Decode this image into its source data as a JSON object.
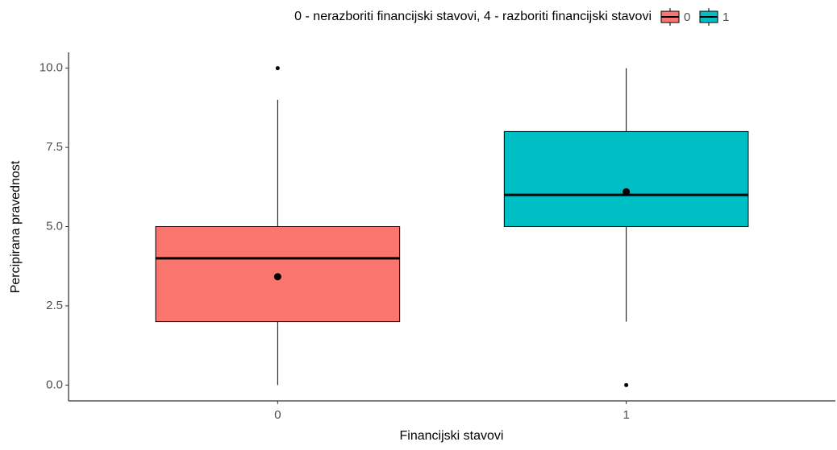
{
  "chart_data": {
    "type": "box",
    "legend_title": "0 - nerazboriti financijski stavovi, 4 - razboriti financijski stavovi",
    "legend_position": "top",
    "xlabel": "Financijski stavovi",
    "ylabel": "Percipirana pravednost",
    "categories": [
      "0",
      "1"
    ],
    "series": [
      {
        "name": "0",
        "color": "#F8766D",
        "min": 0,
        "q1": 2,
        "median": 4,
        "q3": 5,
        "max": 9,
        "mean": 3.42,
        "outliers": [
          10
        ]
      },
      {
        "name": "1",
        "color": "#00BFC4",
        "min": 2,
        "q1": 5,
        "median": 6,
        "q3": 8,
        "max": 10,
        "mean": 6.1,
        "outliers": [
          0
        ]
      }
    ],
    "ylim": [
      -0.5,
      10.5
    ],
    "yticks": [
      {
        "value": 0,
        "label": "0.0"
      },
      {
        "value": 2.5,
        "label": "2.5"
      },
      {
        "value": 5,
        "label": "5.0"
      },
      {
        "value": 7.5,
        "label": "7.5"
      },
      {
        "value": 10,
        "label": "10.0"
      }
    ],
    "grid": false
  }
}
